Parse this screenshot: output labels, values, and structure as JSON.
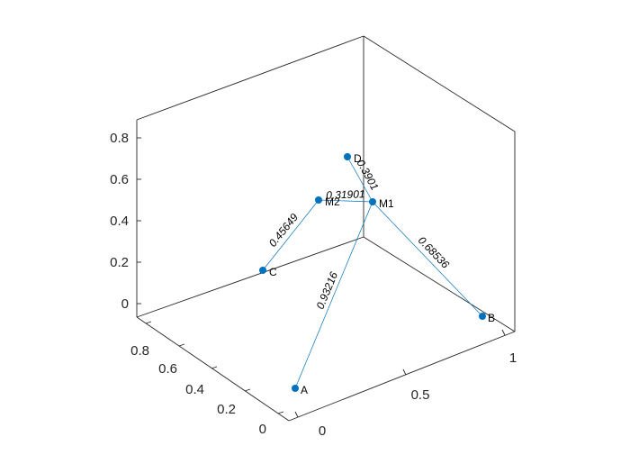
{
  "chart_data": {
    "type": "3d-graph",
    "colors": {
      "marker": "#0072BD",
      "axis": "#262626",
      "text": "#000000"
    },
    "z_ticks": [
      "0",
      "0.2",
      "0.4",
      "0.6",
      "0.8"
    ],
    "x_ticks": [
      "0",
      "0.5",
      "1"
    ],
    "y_ticks": [
      "0",
      "0.2",
      "0.4",
      "0.6",
      "0.8"
    ],
    "nodes": [
      {
        "name": "A",
        "label": "A"
      },
      {
        "name": "B",
        "label": "B"
      },
      {
        "name": "C",
        "label": "C"
      },
      {
        "name": "D",
        "label": "D"
      },
      {
        "name": "M1",
        "label": "M1"
      },
      {
        "name": "M2",
        "label": "M2"
      }
    ],
    "edges": [
      {
        "from": "A",
        "to": "M1",
        "weight": "0.93216"
      },
      {
        "from": "B",
        "to": "M1",
        "weight": "0.68536"
      },
      {
        "from": "C",
        "to": "M2",
        "weight": "0.45649"
      },
      {
        "from": "D",
        "to": "M1",
        "weight": "0.3901"
      },
      {
        "from": "M1",
        "to": "M2",
        "weight": "0.31901"
      }
    ]
  }
}
